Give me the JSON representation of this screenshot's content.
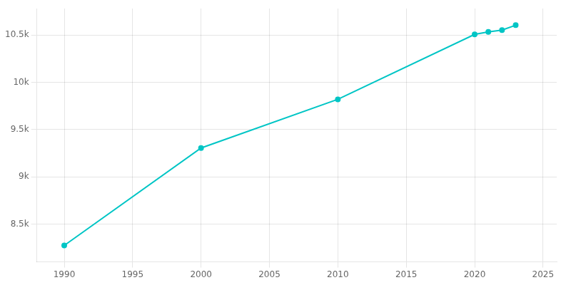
{
  "chart_data": {
    "type": "line",
    "x": [
      1990,
      2000,
      2010,
      2020,
      2021,
      2022,
      2023
    ],
    "values": [
      8274,
      9305,
      9820,
      10507,
      10533,
      10552,
      10604
    ],
    "color": "#00C5C5",
    "marker": "circle",
    "xlim": [
      1988,
      2026
    ],
    "ylim": [
      8100,
      10780
    ],
    "xticks": [
      1990,
      1995,
      2000,
      2005,
      2010,
      2015,
      2020,
      2025
    ],
    "yticks": [
      {
        "value": 8500,
        "label": "8.5k"
      },
      {
        "value": 9000,
        "label": "9k"
      },
      {
        "value": 9500,
        "label": "9.5k"
      },
      {
        "value": 10000,
        "label": "10k"
      },
      {
        "value": 10500,
        "label": "10.5k"
      }
    ],
    "grid": true
  }
}
